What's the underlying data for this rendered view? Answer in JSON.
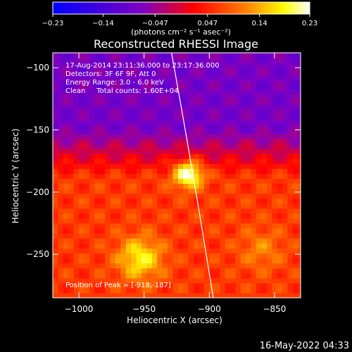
{
  "chart_data": {
    "type": "heatmap",
    "title": "Reconstructed RHESSI Image",
    "xlabel": "Heliocentric X (arcsec)",
    "ylabel": "Heliocentric Y (arcsec)",
    "xlim": [
      -1020,
      -830
    ],
    "ylim": [
      -285,
      -88
    ],
    "x_ticks": [
      -1000,
      -950,
      -900,
      -850
    ],
    "y_ticks": [
      -100,
      -150,
      -200,
      -250
    ],
    "x_tick_labels": [
      "−1000",
      "−950",
      "−900",
      "−850"
    ],
    "y_tick_labels": [
      "−100",
      "−150",
      "−200",
      "−250"
    ],
    "colorbar": {
      "min": -0.23,
      "max": 0.23,
      "ticks": [
        -0.23,
        -0.14,
        -0.047,
        0.047,
        0.14,
        0.23
      ],
      "tick_labels": [
        "−0.23",
        "−0.14",
        "−0.047",
        "0.047",
        "0.14",
        "0.23"
      ],
      "unit": "(photons cm⁻² s⁻¹ asec⁻²)",
      "colormap": [
        "#0000ff",
        "#8000c0",
        "#ff0000",
        "#ff8000",
        "#ffff00",
        "#ffffff"
      ]
    },
    "annotations": [
      "17-Aug-2014 23:11:36.000 to 23:17:36.000",
      "Detectors: 3F 6F 9F, Att 0",
      "Energy Range: 3.0 - 6.0 keV",
      "Clean     Total counts: 1.60E+04"
    ],
    "peak_label": "Position of Peak = [-918,-187]",
    "sources": [
      {
        "x": -918,
        "y": -187,
        "peak": 0.23
      },
      {
        "x": -955,
        "y": -255,
        "peak": 0.17
      },
      {
        "x": -862,
        "y": -248,
        "peak": 0.1
      }
    ],
    "limb_points": [
      [
        -929,
        -88
      ],
      [
        -913,
        -180
      ],
      [
        -897,
        -285
      ]
    ]
  },
  "footer_timestamp": "16-May-2022 04:33"
}
